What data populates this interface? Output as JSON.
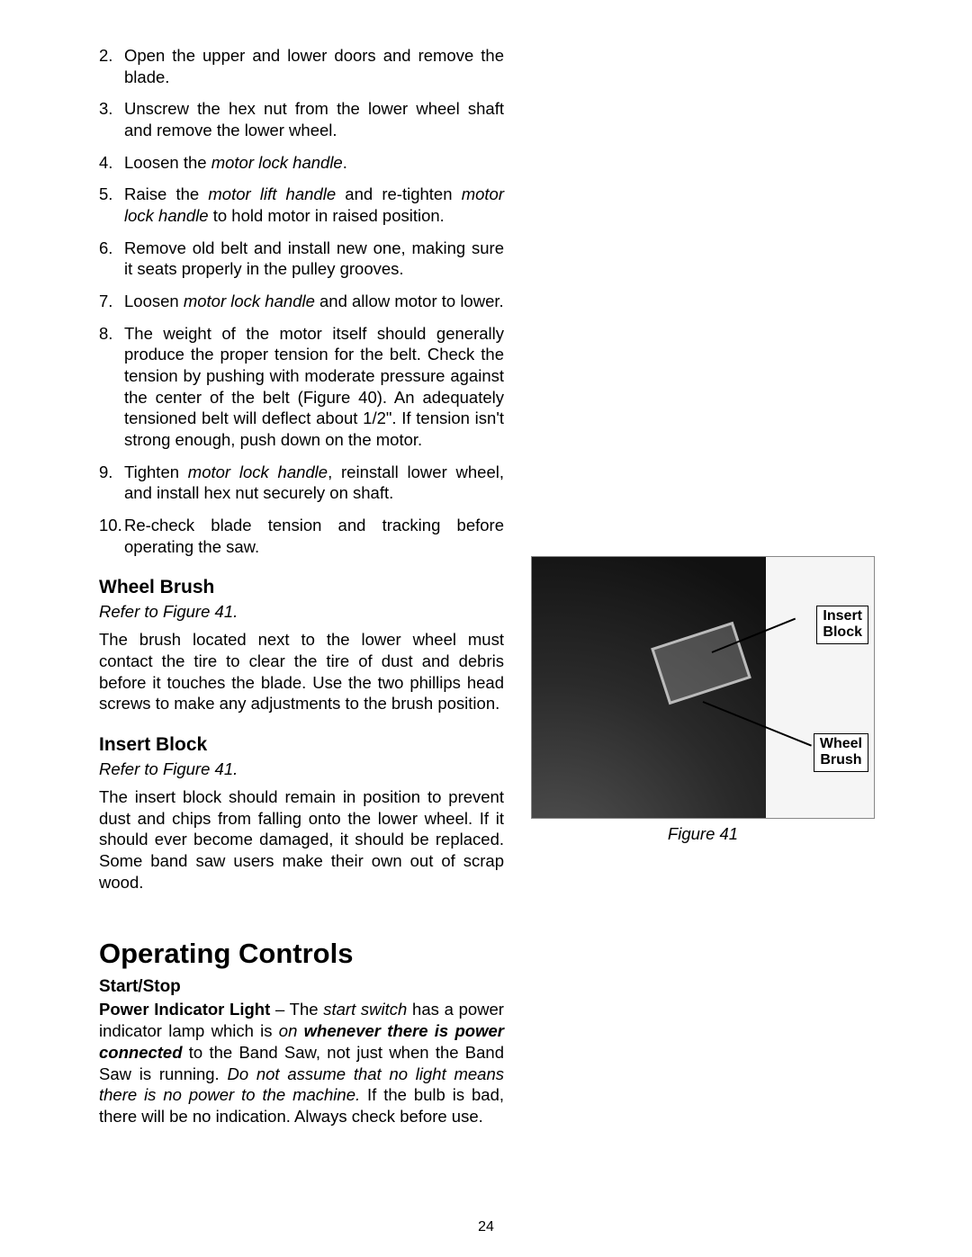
{
  "steps": [
    {
      "n": "2.",
      "parts": [
        {
          "t": "Open the upper and lower doors and remove the blade."
        }
      ]
    },
    {
      "n": "3.",
      "parts": [
        {
          "t": "Unscrew the hex nut from the lower wheel shaft  and remove the lower wheel."
        }
      ]
    },
    {
      "n": "4.",
      "parts": [
        {
          "t": "Loosen the "
        },
        {
          "t": "motor lock handle",
          "cls": "italic"
        },
        {
          "t": "."
        }
      ]
    },
    {
      "n": "5.",
      "parts": [
        {
          "t": "Raise the "
        },
        {
          "t": "motor lift handle",
          "cls": "italic"
        },
        {
          "t": " and re-tighten "
        },
        {
          "t": "motor lock handle",
          "cls": "italic"
        },
        {
          "t": " to hold motor in raised position."
        }
      ]
    },
    {
      "n": "6.",
      "parts": [
        {
          "t": "Remove old belt and install new one, making sure it seats properly in the pulley grooves."
        }
      ]
    },
    {
      "n": "7.",
      "parts": [
        {
          "t": "Loosen "
        },
        {
          "t": "motor lock handle",
          "cls": "italic"
        },
        {
          "t": " and allow motor to lower."
        }
      ]
    },
    {
      "n": "8.",
      "parts": [
        {
          "t": "The weight of the motor itself should generally produce the proper tension for the belt. Check the tension by pushing with moderate pressure against the center of the belt (Figure 40). An adequately tensioned belt will deflect about 1/2\". If tension isn't strong enough, push down on the motor."
        }
      ]
    },
    {
      "n": "9.",
      "parts": [
        {
          "t": "Tighten "
        },
        {
          "t": "motor lock handle",
          "cls": "italic"
        },
        {
          "t": ", reinstall lower wheel, and install hex nut securely on shaft."
        }
      ]
    },
    {
      "n": "10.",
      "parts": [
        {
          "t": "Re-check blade tension and tracking before operating the saw."
        }
      ]
    }
  ],
  "wheel_brush_heading": "Wheel Brush",
  "wheel_brush_refer": "Refer to Figure 41.",
  "wheel_brush_para": "The brush located next to the lower wheel must contact the tire to clear the tire of dust and debris before it touches the blade. Use the two phillips head screws to make any adjustments to the brush position.",
  "insert_block_heading": "Insert Block",
  "insert_block_refer": "Refer to Figure 41.",
  "insert_block_para": "The insert block should remain in position to prevent dust and chips from falling onto the lower wheel. If it should ever become damaged, it should be replaced. Some band saw users make their own out of scrap wood.",
  "operating_controls_heading": "Operating Controls",
  "start_stop_heading": "Start/Stop",
  "start_stop_parts": [
    {
      "t": "Power Indicator Light",
      "cls": "bold"
    },
    {
      "t": " – The "
    },
    {
      "t": "start switch",
      "cls": "italic"
    },
    {
      "t": " has a power indicator lamp which is "
    },
    {
      "t": "on",
      "cls": "italic"
    },
    {
      "t": " "
    },
    {
      "t": "whenever there is power connected",
      "cls": "bolditalic"
    },
    {
      "t": " to the Band Saw, not just when the Band Saw is running. "
    },
    {
      "t": "Do not assume that no light means there is no power to the machine.",
      "cls": "italic"
    },
    {
      "t": " If the bulb is bad, there will be no indication. Always check before use."
    }
  ],
  "figure": {
    "label_insert": "Insert\nBlock",
    "label_wheel": "Wheel\nBrush",
    "caption": "Figure 41"
  },
  "page_number": "24",
  "colors": {
    "text": "#000000",
    "background": "#ffffff"
  }
}
